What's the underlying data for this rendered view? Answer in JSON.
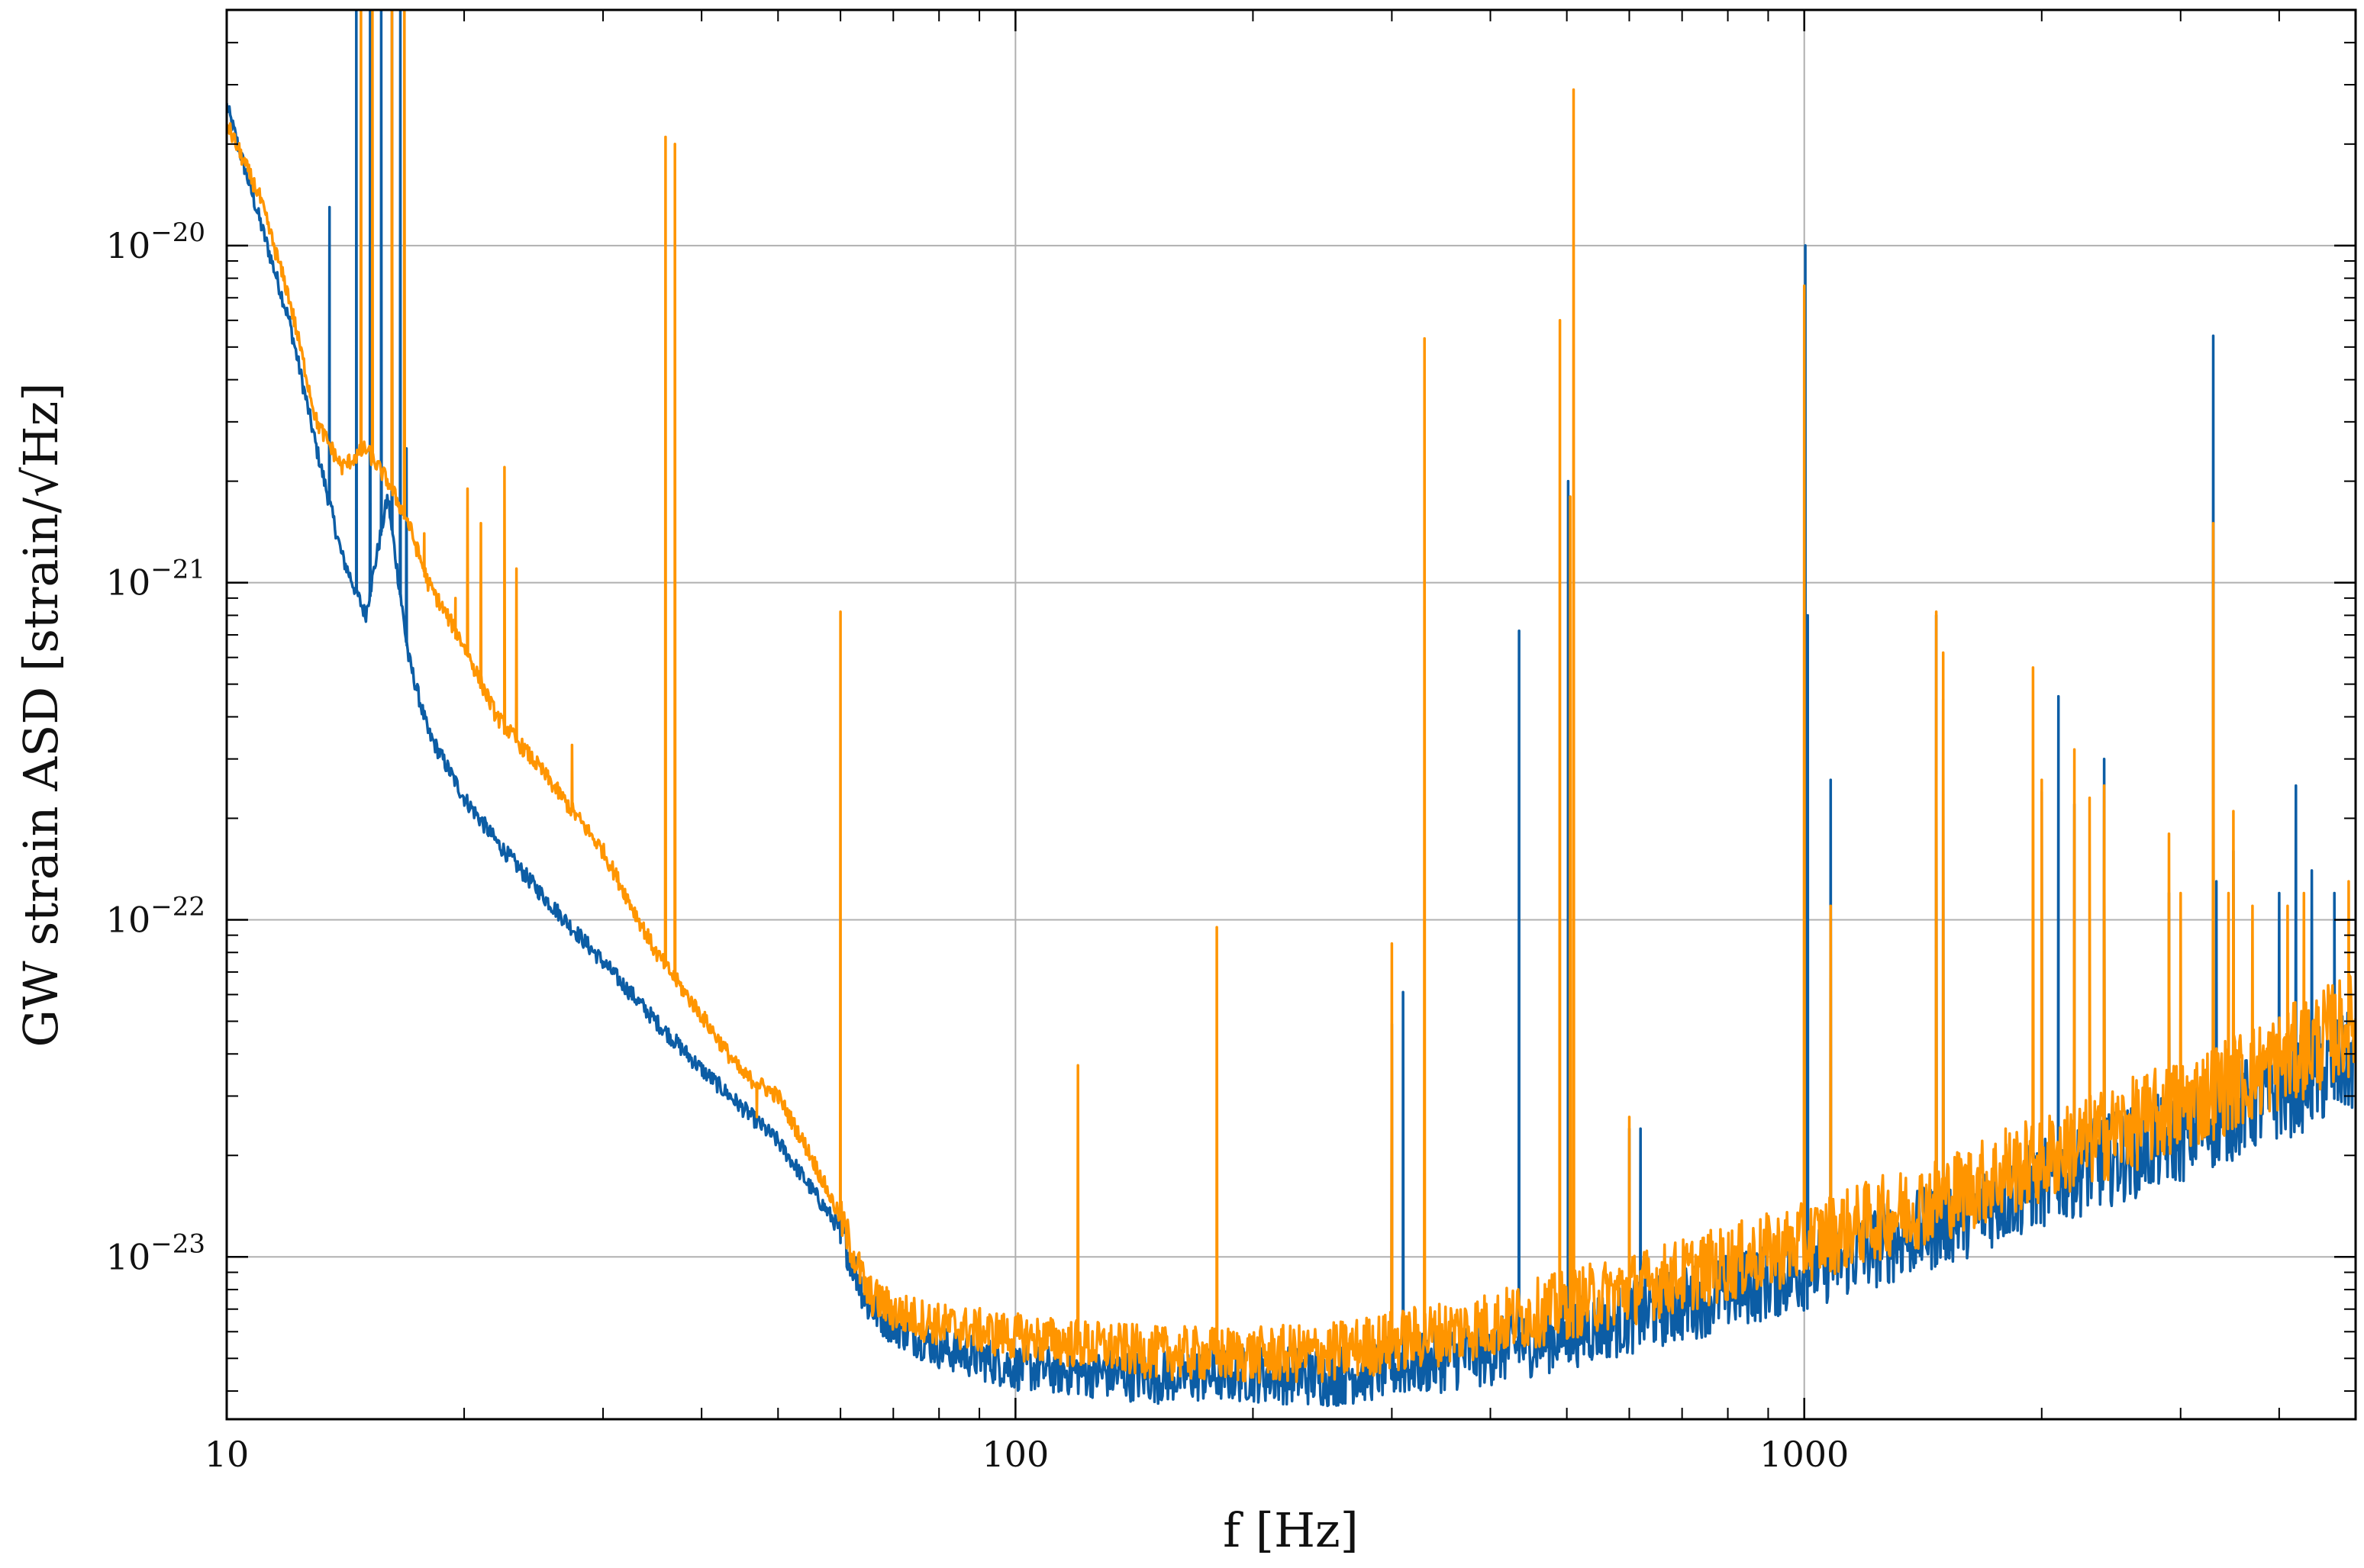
{
  "chart_data": {
    "type": "line",
    "title": "",
    "xlabel": "f [Hz]",
    "ylabel": "GW strain ASD [strain/√Hz]",
    "x_scale": "log",
    "y_scale": "log",
    "xlim": [
      10,
      5000
    ],
    "ylim": [
      3.3e-24,
      5e-20
    ],
    "grid": true,
    "legend": "none",
    "x_ticks": [
      {
        "value": 10,
        "label": "10"
      },
      {
        "value": 100,
        "label": "100"
      },
      {
        "value": 1000,
        "label": "1000"
      }
    ],
    "y_ticks": [
      {
        "value": 1e-23,
        "base": "10",
        "exp": "−23"
      },
      {
        "value": 1e-22,
        "base": "10",
        "exp": "−22"
      },
      {
        "value": 1e-21,
        "base": "10",
        "exp": "−21"
      },
      {
        "value": 1e-20,
        "base": "10",
        "exp": "−20"
      }
    ],
    "series": [
      {
        "color": "#0c5da5",
        "baseline": [
          [
            10,
            2.6e-20
          ],
          [
            11,
            1.2e-20
          ],
          [
            12,
            6e-21
          ],
          [
            13,
            2.5e-21
          ],
          [
            14,
            1.2e-21
          ],
          [
            15,
            8e-22
          ],
          [
            16,
            1.8e-21
          ],
          [
            17,
            6e-22
          ],
          [
            18,
            3.6e-22
          ],
          [
            20,
            2.3e-22
          ],
          [
            22,
            1.7e-22
          ],
          [
            25,
            1.2e-22
          ],
          [
            30,
            7.5e-23
          ],
          [
            35,
            5e-23
          ],
          [
            40,
            3.6e-23
          ],
          [
            50,
            2.2e-23
          ],
          [
            60,
            1.2e-23
          ],
          [
            65,
            7.2e-24
          ],
          [
            70,
            6.3e-24
          ],
          [
            80,
            5.4e-24
          ],
          [
            100,
            4.7e-24
          ],
          [
            150,
            4.4e-24
          ],
          [
            200,
            4.5e-24
          ],
          [
            250,
            4.4e-24
          ],
          [
            300,
            4.7e-24
          ],
          [
            400,
            5.2e-24
          ],
          [
            500,
            5.9e-24
          ],
          [
            700,
            7.2e-24
          ],
          [
            1000,
            9.1e-24
          ],
          [
            1500,
            1.25e-23
          ],
          [
            2000,
            1.65e-23
          ],
          [
            3000,
            2.3e-23
          ],
          [
            4000,
            3.1e-23
          ],
          [
            5000,
            3.8e-23
          ]
        ],
        "peaks": [
          [
            13.5,
            1.3e-20
          ],
          [
            14.6,
            5e-20
          ],
          [
            15.2,
            5e-20
          ],
          [
            15.7,
            5e-20
          ],
          [
            16.2,
            5e-20
          ],
          [
            16.6,
            5e-20
          ],
          [
            16.9,
            2.5e-21
          ],
          [
            60,
            1.1e-23
          ],
          [
            300,
            4.9e-23
          ],
          [
            310,
            6.1e-23
          ],
          [
            435,
            7.2e-22
          ],
          [
            502,
            2e-21
          ],
          [
            504,
            1.5e-21
          ],
          [
            600,
            2.4e-23
          ],
          [
            620,
            2.4e-23
          ],
          [
            1003,
            1e-20
          ],
          [
            1010,
            8e-22
          ],
          [
            1080,
            2.6e-22
          ],
          [
            1470,
            8e-22
          ],
          [
            1500,
            4.5e-22
          ],
          [
            2000,
            2.4e-22
          ],
          [
            2100,
            4.6e-22
          ],
          [
            2200,
            2.2e-22
          ],
          [
            2400,
            3e-22
          ],
          [
            2900,
            1.2e-22
          ],
          [
            3300,
            5.4e-21
          ],
          [
            3330,
            1.3e-22
          ],
          [
            3500,
            1.6e-22
          ],
          [
            4000,
            1.2e-22
          ],
          [
            4200,
            2.5e-22
          ],
          [
            4400,
            1.4e-22
          ],
          [
            4700,
            1.2e-22
          ]
        ]
      },
      {
        "color": "#ff9500",
        "baseline": [
          [
            10,
            2.3e-20
          ],
          [
            11,
            1.4e-20
          ],
          [
            12,
            7e-21
          ],
          [
            13,
            3e-21
          ],
          [
            14,
            2.2e-21
          ],
          [
            15,
            2.5e-21
          ],
          [
            16,
            2e-21
          ],
          [
            17,
            1.5e-21
          ],
          [
            18,
            1e-21
          ],
          [
            20,
            6.5e-22
          ],
          [
            22,
            4e-22
          ],
          [
            25,
            2.8e-22
          ],
          [
            30,
            1.6e-22
          ],
          [
            35,
            8e-23
          ],
          [
            40,
            5.2e-23
          ],
          [
            45,
            3.5e-23
          ],
          [
            50,
            3e-23
          ],
          [
            55,
            2e-23
          ],
          [
            60,
            1.3e-23
          ],
          [
            65,
            7.8e-24
          ],
          [
            70,
            6.9e-24
          ],
          [
            80,
            6.3e-24
          ],
          [
            100,
            5.8e-24
          ],
          [
            150,
            5.2e-24
          ],
          [
            200,
            5.1e-24
          ],
          [
            250,
            5.2e-24
          ],
          [
            300,
            5.6e-24
          ],
          [
            400,
            6.3e-24
          ],
          [
            500,
            7.2e-24
          ],
          [
            700,
            8.8e-24
          ],
          [
            1000,
            1.1e-23
          ],
          [
            1500,
            1.5e-23
          ],
          [
            2000,
            1.95e-23
          ],
          [
            3000,
            2.8e-23
          ],
          [
            4000,
            3.8e-23
          ],
          [
            5000,
            5e-23
          ]
        ],
        "peaks": [
          [
            14.8,
            5e-20
          ],
          [
            15.3,
            5e-20
          ],
          [
            16.2,
            5e-20
          ],
          [
            16.8,
            5e-20
          ],
          [
            17.8,
            1.4e-21
          ],
          [
            19.5,
            9e-22
          ],
          [
            20.2,
            1.9e-21
          ],
          [
            21,
            1.5e-21
          ],
          [
            22.5,
            2.2e-21
          ],
          [
            23.3,
            1.1e-21
          ],
          [
            27.4,
            3.3e-22
          ],
          [
            36,
            2.1e-20
          ],
          [
            37,
            2e-20
          ],
          [
            47,
            2.6e-23
          ],
          [
            60,
            8.2e-22
          ],
          [
            120,
            3.7e-23
          ],
          [
            180,
            9.5e-23
          ],
          [
            300,
            8.5e-23
          ],
          [
            330,
            5.3e-21
          ],
          [
            490,
            6e-21
          ],
          [
            505,
            1.8e-21
          ],
          [
            510,
            2.9e-20
          ],
          [
            600,
            2.6e-23
          ],
          [
            1000,
            7.6e-21
          ],
          [
            1080,
            1.1e-22
          ],
          [
            1470,
            8.2e-22
          ],
          [
            1500,
            6.2e-22
          ],
          [
            1800,
            2.4e-23
          ],
          [
            1950,
            5.6e-22
          ],
          [
            2000,
            2.6e-22
          ],
          [
            2200,
            3.2e-22
          ],
          [
            2300,
            2.3e-22
          ],
          [
            2400,
            2.5e-22
          ],
          [
            2900,
            1.8e-22
          ],
          [
            3000,
            1.2e-22
          ],
          [
            3300,
            1.5e-21
          ],
          [
            3450,
            1.2e-22
          ],
          [
            3500,
            2.1e-22
          ],
          [
            3700,
            1.1e-22
          ],
          [
            4100,
            1.1e-22
          ],
          [
            4300,
            1.2e-22
          ],
          [
            4900,
            1.3e-22
          ]
        ]
      }
    ]
  }
}
